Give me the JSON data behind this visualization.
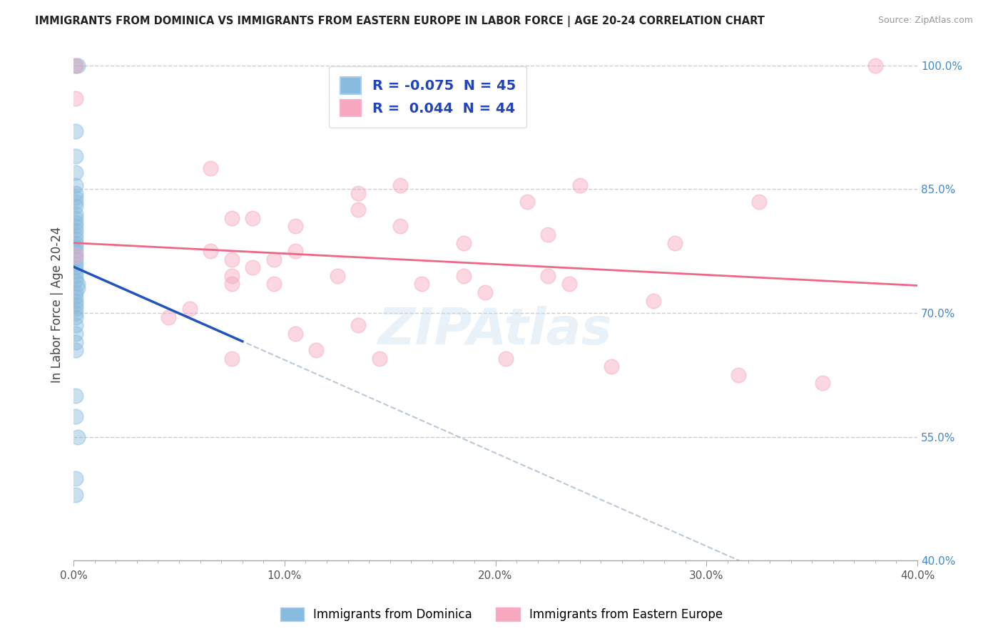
{
  "title": "IMMIGRANTS FROM DOMINICA VS IMMIGRANTS FROM EASTERN EUROPE IN LABOR FORCE | AGE 20-24 CORRELATION CHART",
  "source": "Source: ZipAtlas.com",
  "ylabel": "In Labor Force | Age 20-24",
  "xlim": [
    0.0,
    0.4
  ],
  "ylim": [
    0.4,
    1.02
  ],
  "xticks": [
    0.0,
    0.1,
    0.2,
    0.3,
    0.4
  ],
  "xtick_labels": [
    "0.0%",
    "10.0%",
    "20.0%",
    "30.0%",
    "40.0%"
  ],
  "yticks": [
    0.4,
    0.55,
    0.7,
    0.85,
    1.0
  ],
  "ytick_labels": [
    "40.0%",
    "55.0%",
    "70.0%",
    "85.0%",
    "100.0%"
  ],
  "grid_color": "#cccccc",
  "background_color": "#ffffff",
  "blue_color": "#88bbdd",
  "pink_color": "#f5a8be",
  "blue_line_color": "#2255bb",
  "pink_line_color": "#ee6688",
  "blue_R": -0.075,
  "blue_N": 45,
  "pink_R": 0.044,
  "pink_N": 44,
  "blue_scatter_x": [
    0.001,
    0.002,
    0.001,
    0.001,
    0.001,
    0.001,
    0.001,
    0.001,
    0.001,
    0.001,
    0.001,
    0.001,
    0.001,
    0.001,
    0.001,
    0.001,
    0.001,
    0.001,
    0.001,
    0.001,
    0.001,
    0.001,
    0.001,
    0.001,
    0.001,
    0.001,
    0.001,
    0.002,
    0.002,
    0.001,
    0.001,
    0.001,
    0.001,
    0.001,
    0.001,
    0.001,
    0.001,
    0.001,
    0.001,
    0.001,
    0.001,
    0.001,
    0.002,
    0.001,
    0.001
  ],
  "blue_scatter_y": [
    1.0,
    1.0,
    0.92,
    0.89,
    0.87,
    0.855,
    0.845,
    0.84,
    0.835,
    0.83,
    0.82,
    0.815,
    0.81,
    0.805,
    0.8,
    0.795,
    0.79,
    0.785,
    0.78,
    0.775,
    0.77,
    0.765,
    0.76,
    0.755,
    0.75,
    0.745,
    0.74,
    0.735,
    0.73,
    0.725,
    0.72,
    0.715,
    0.71,
    0.705,
    0.7,
    0.695,
    0.685,
    0.675,
    0.665,
    0.655,
    0.6,
    0.575,
    0.55,
    0.5,
    0.48
  ],
  "pink_scatter_x": [
    0.001,
    0.001,
    0.38,
    0.065,
    0.155,
    0.24,
    0.135,
    0.215,
    0.325,
    0.135,
    0.075,
    0.085,
    0.105,
    0.155,
    0.225,
    0.185,
    0.285,
    0.105,
    0.065,
    0.075,
    0.095,
    0.085,
    0.075,
    0.125,
    0.185,
    0.225,
    0.075,
    0.095,
    0.165,
    0.235,
    0.195,
    0.275,
    0.055,
    0.045,
    0.135,
    0.105,
    0.115,
    0.075,
    0.145,
    0.205,
    0.255,
    0.315,
    0.355,
    0.001
  ],
  "pink_scatter_y": [
    1.0,
    0.96,
    1.0,
    0.875,
    0.855,
    0.855,
    0.845,
    0.835,
    0.835,
    0.825,
    0.815,
    0.815,
    0.805,
    0.805,
    0.795,
    0.785,
    0.785,
    0.775,
    0.775,
    0.765,
    0.765,
    0.755,
    0.745,
    0.745,
    0.745,
    0.745,
    0.735,
    0.735,
    0.735,
    0.735,
    0.725,
    0.715,
    0.705,
    0.695,
    0.685,
    0.675,
    0.655,
    0.645,
    0.645,
    0.645,
    0.635,
    0.625,
    0.615,
    0.77
  ]
}
